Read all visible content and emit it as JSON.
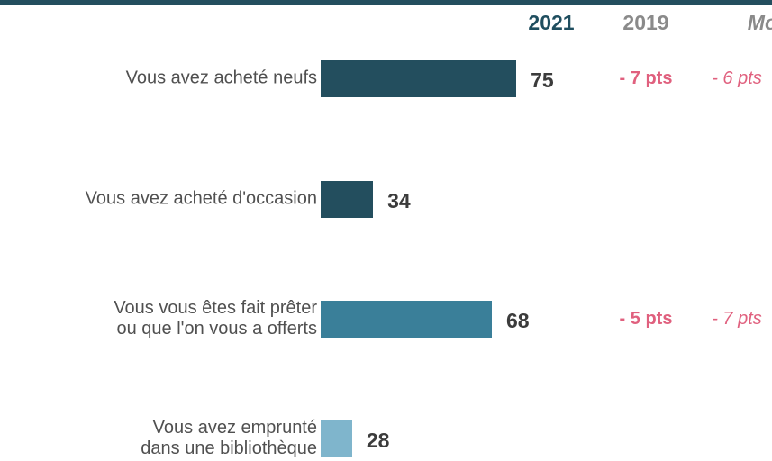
{
  "chart_data": {
    "type": "bar",
    "orientation": "horizontal",
    "categories": [
      "Vous avez acheté neufs",
      "Vous avez acheté d'occasion",
      "Vous vous êtes fait prêter\nou que l'on vous a offerts",
      "Vous avez emprunté\ndans une bibliothèque"
    ],
    "series": [
      {
        "name": "2021",
        "color": "#1f4e5f",
        "colors": [
          "#234e5e",
          "#234e5e",
          "#3a7f99",
          "#7fb5cc"
        ],
        "values": [
          75,
          34,
          68,
          28
        ]
      }
    ],
    "xlim": [
      19,
      100
    ],
    "columns": [
      {
        "name": "2019",
        "color": "#8a8a8a",
        "label_color": "#e0607e",
        "italic": false,
        "values": [
          -7,
          null,
          -5,
          null
        ],
        "value_labels": [
          "- 7 pts",
          null,
          "- 5 pts",
          null
        ]
      },
      {
        "name": "Mo",
        "color": "#8a8a8a",
        "label_color": "#e0607e",
        "italic": true,
        "values": [
          -6,
          null,
          -7,
          null
        ],
        "value_labels": [
          "- 6 pts",
          null,
          "- 7 pts",
          null
        ]
      }
    ]
  }
}
